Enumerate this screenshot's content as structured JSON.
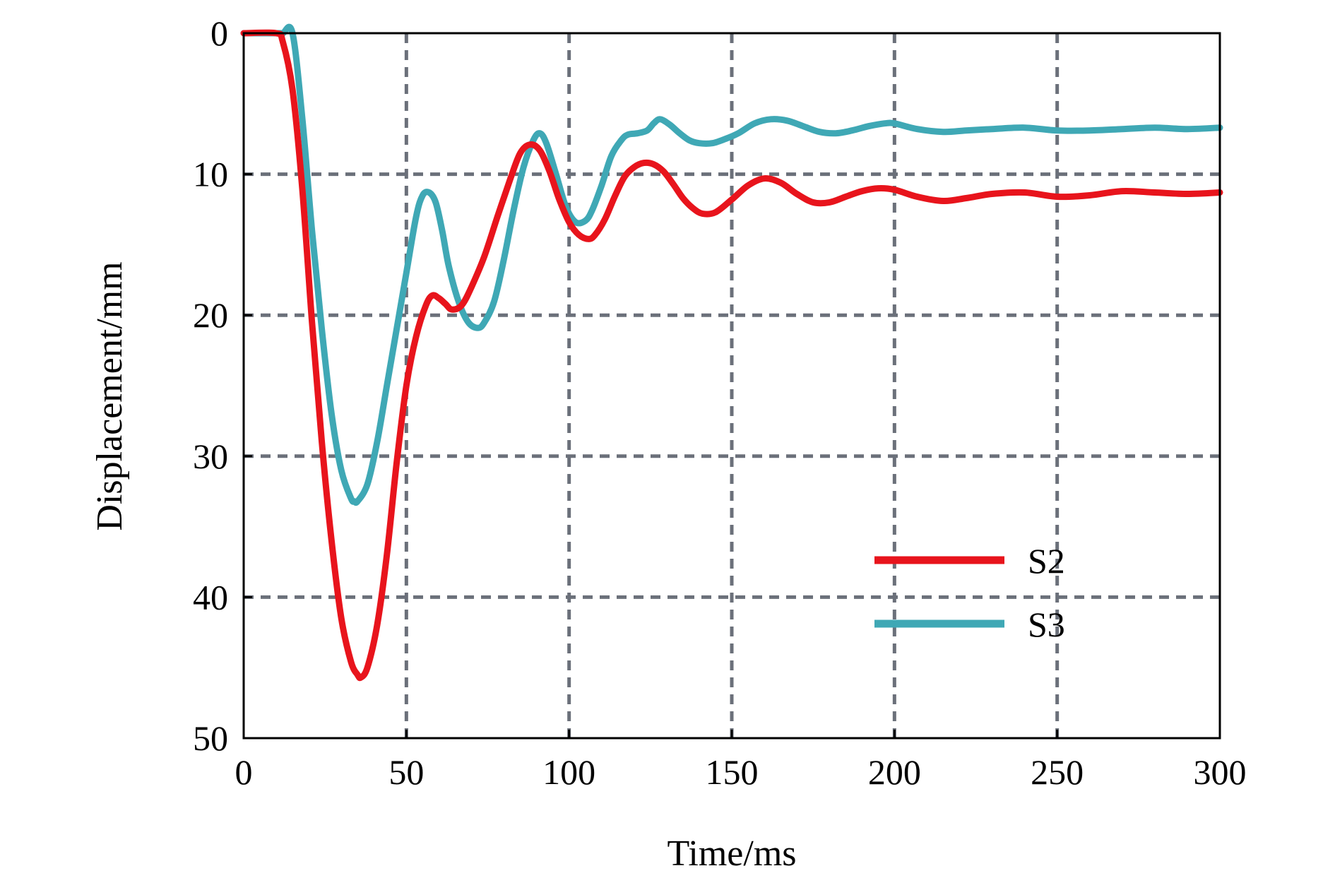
{
  "chart_data": {
    "type": "line",
    "title": "",
    "xlabel": "Time/ms",
    "ylabel": "Displacement/mm",
    "xlim": [
      0,
      300
    ],
    "ylim": [
      0,
      50
    ],
    "y_inverted": true,
    "grid": true,
    "legend_position": "bottom-right",
    "xticks": [
      "0",
      "50",
      "100",
      "150",
      "200",
      "250",
      "300"
    ],
    "yticks": [
      "0",
      "10",
      "20",
      "30",
      "40",
      "50"
    ],
    "series": [
      {
        "name": "S2",
        "color": "#e8141c",
        "x": [
          0,
          10,
          12,
          15,
          18,
          21,
          24,
          27,
          30,
          33,
          35,
          36,
          38,
          41,
          44,
          47,
          50,
          53,
          56,
          58,
          60,
          62,
          64,
          67,
          70,
          74,
          78,
          82,
          85,
          88,
          91,
          94,
          97,
          100,
          103,
          106,
          108,
          111,
          114,
          117,
          120,
          123,
          126,
          129,
          132,
          135,
          138,
          141,
          145,
          150,
          155,
          160,
          165,
          170,
          175,
          180,
          185,
          190,
          195,
          200,
          207,
          215,
          222,
          230,
          240,
          250,
          260,
          270,
          280,
          290,
          300
        ],
        "y": [
          0,
          0,
          0.6,
          4,
          11,
          20.5,
          29,
          36,
          41.5,
          44.6,
          45.5,
          45.7,
          45,
          42,
          37,
          30.5,
          25,
          21.5,
          19.3,
          18.6,
          18.8,
          19.2,
          19.6,
          19.3,
          18,
          15.8,
          13,
          10.3,
          8.5,
          7.9,
          8.3,
          9.8,
          11.8,
          13.4,
          14.3,
          14.6,
          14.3,
          13.2,
          11.6,
          10.2,
          9.5,
          9.2,
          9.3,
          9.8,
          10.7,
          11.7,
          12.4,
          12.8,
          12.7,
          11.8,
          10.8,
          10.3,
          10.6,
          11.4,
          12,
          12,
          11.6,
          11.2,
          11,
          11.1,
          11.6,
          11.9,
          11.7,
          11.4,
          11.3,
          11.6,
          11.5,
          11.2,
          11.3,
          11.4,
          11.3
        ]
      },
      {
        "name": "S3",
        "color": "#3fa8b5",
        "x": [
          0,
          10,
          12,
          15,
          18,
          21,
          24,
          27,
          30,
          33,
          34,
          35,
          38,
          41,
          44,
          47,
          50,
          53,
          55,
          57,
          59,
          61,
          63,
          66,
          69,
          72,
          74,
          77,
          80,
          83,
          86,
          89,
          91,
          93,
          96,
          99,
          102,
          105,
          107,
          110,
          113,
          116,
          118,
          121,
          124,
          126,
          128,
          131,
          134,
          137,
          140,
          144,
          148,
          152,
          157,
          162,
          167,
          172,
          177,
          182,
          187,
          192,
          197,
          200,
          207,
          215,
          222,
          230,
          240,
          250,
          260,
          270,
          280,
          290,
          300
        ],
        "y": [
          0,
          0,
          0,
          0,
          6,
          14,
          21,
          27,
          31,
          33,
          33.2,
          33.2,
          32,
          29,
          25,
          21,
          17,
          13,
          11.5,
          11.3,
          12,
          14,
          16.5,
          19,
          20.5,
          20.9,
          20.5,
          19,
          16,
          12.5,
          9.5,
          7.6,
          7.1,
          7.8,
          10,
          12.3,
          13.4,
          13.3,
          12.6,
          10.8,
          8.7,
          7.6,
          7.2,
          7.1,
          6.9,
          6.4,
          6.1,
          6.5,
          7.1,
          7.6,
          7.8,
          7.8,
          7.5,
          7.1,
          6.4,
          6.1,
          6.2,
          6.6,
          7,
          7.1,
          6.9,
          6.6,
          6.4,
          6.4,
          6.8,
          7,
          6.9,
          6.8,
          6.7,
          6.9,
          6.9,
          6.8,
          6.7,
          6.8,
          6.7
        ]
      }
    ]
  }
}
